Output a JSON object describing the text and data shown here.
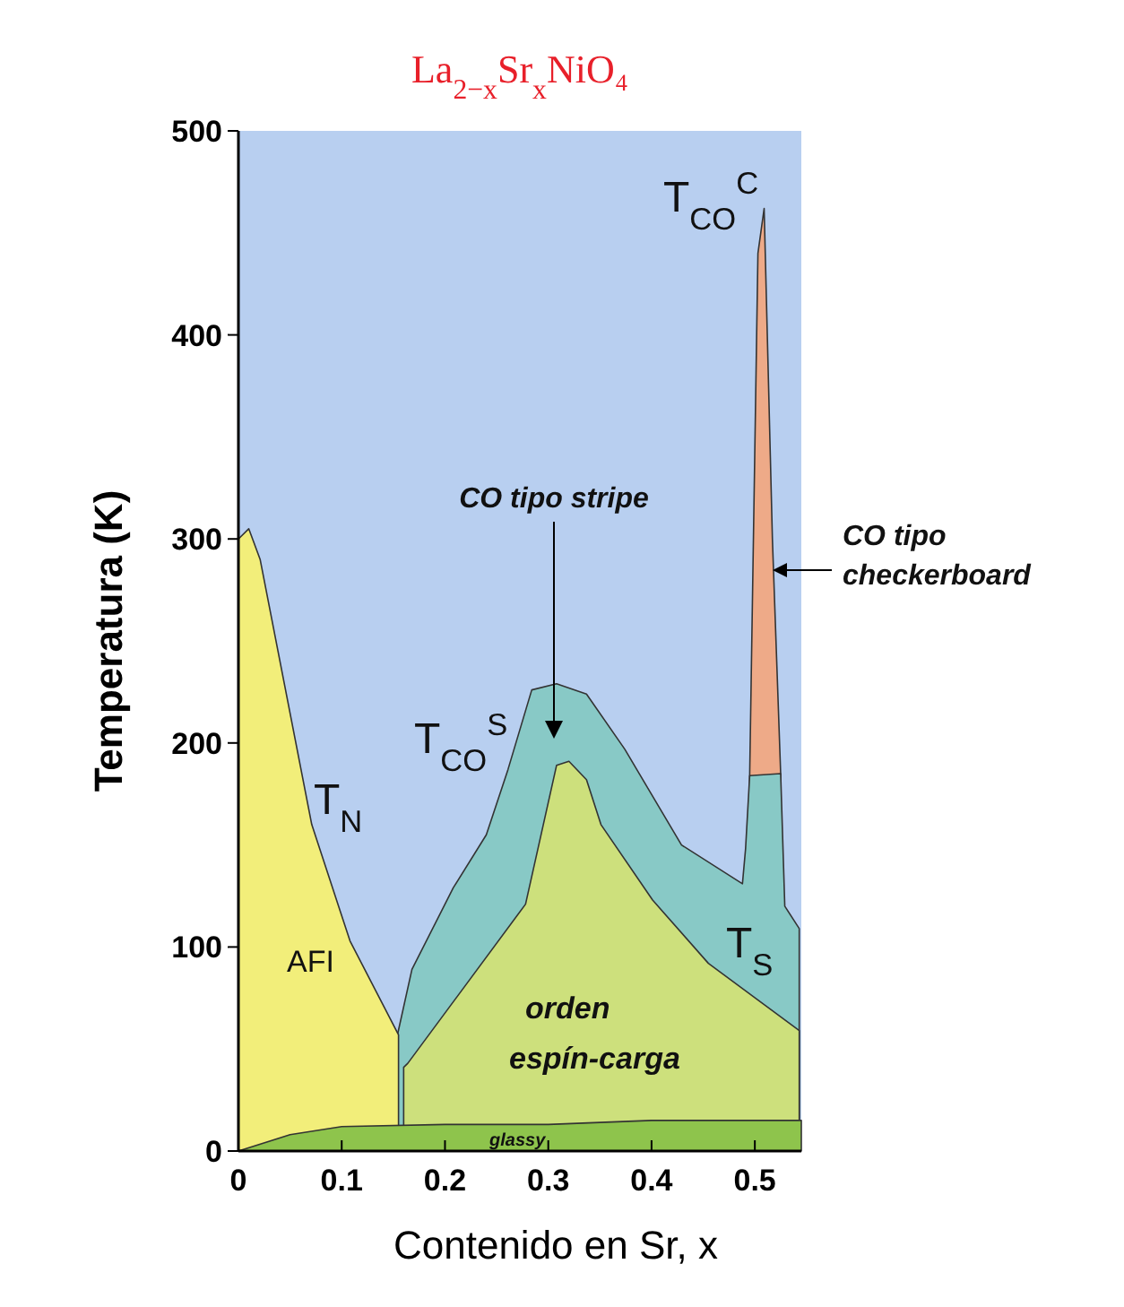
{
  "chart_data": {
    "type": "area",
    "title": "La$_{2−x}$Sr$_{x}$NiO₄",
    "xlabel": "Contenido en Sr, x",
    "ylabel": "Temperatura (K)",
    "xlim": [
      0,
      0.545
    ],
    "ylim": [
      0,
      500
    ],
    "xticks": [
      0,
      0.1,
      0.2,
      0.3,
      0.4,
      0.5
    ],
    "yticks": [
      0,
      100,
      200,
      300,
      400,
      500
    ],
    "grid": false,
    "bands": [
      {
        "axis": "y",
        "from": 0,
        "to": 500,
        "color": "#b8cff0"
      }
    ],
    "series": [
      {
        "color": "#eeaa88",
        "x": [
          0.495,
          0.503,
          0.509,
          0.517,
          0.525
        ],
        "values": [
          184,
          440,
          462,
          300,
          185
        ]
      },
      {
        "color": "#88c9c6",
        "x": [
          0.154,
          0.168,
          0.208,
          0.24,
          0.261,
          0.284,
          0.308,
          0.337,
          0.374,
          0.429,
          0.488,
          0.491,
          0.495,
          0.525,
          0.529,
          0.543
        ],
        "values": [
          57,
          89,
          129,
          155,
          187,
          226,
          229,
          224,
          197,
          150,
          131,
          148,
          184,
          185,
          120,
          109
        ]
      },
      {
        "color": "#cde07c",
        "x": [
          0.16,
          0.164,
          0.278,
          0.308,
          0.32,
          0.337,
          0.351,
          0.401,
          0.455,
          0.543
        ],
        "values": [
          41,
          43,
          121,
          189,
          191,
          182,
          160,
          123,
          92,
          59
        ]
      },
      {
        "color": "#f2ee7a",
        "x": [
          0,
          0.01,
          0.021,
          0.071,
          0.108,
          0.155
        ],
        "values": [
          300,
          305,
          290,
          160,
          103,
          57
        ]
      },
      {
        "color": "#8ec44c",
        "x": [
          0,
          0.05,
          0.1,
          0.2,
          0.3,
          0.4,
          0.545
        ],
        "values": [
          0,
          8,
          12,
          13,
          13,
          15,
          15
        ]
      }
    ],
    "annotations": [
      "T$_{N}$",
      "T$_{CO}$$^{S}$",
      "T$_{CO}$$^{C}$",
      "T$_{S}$",
      "AFI",
      "orden",
      "espín-carga",
      "glassy",
      "CO tipo stripe",
      "CO tipo checkerboard"
    ]
  }
}
